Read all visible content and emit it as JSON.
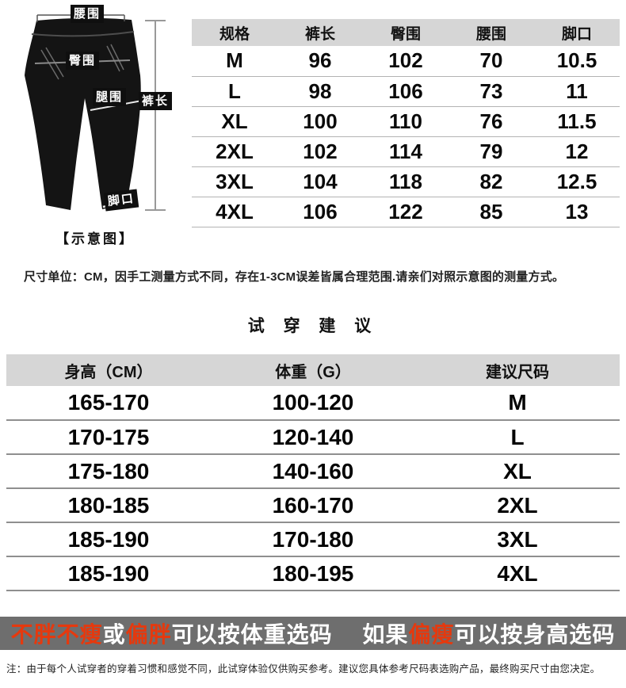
{
  "diagram": {
    "labels": {
      "waist": "腰围",
      "hip": "臀围",
      "thigh": "腿围",
      "length": "裤长",
      "cuff": "脚口"
    },
    "caption": "【示意图】"
  },
  "size_table": {
    "headers": [
      "规格",
      "裤长",
      "臀围",
      "腰围",
      "脚口"
    ],
    "rows": [
      [
        "M",
        "96",
        "102",
        "70",
        "10.5"
      ],
      [
        "L",
        "98",
        "106",
        "73",
        "11"
      ],
      [
        "XL",
        "100",
        "110",
        "76",
        "11.5"
      ],
      [
        "2XL",
        "102",
        "114",
        "79",
        "12"
      ],
      [
        "3XL",
        "104",
        "118",
        "82",
        "12.5"
      ],
      [
        "4XL",
        "106",
        "122",
        "85",
        "13"
      ]
    ]
  },
  "measure_note": "尺寸单位：CM，因手工测量方式不同，存在1-3CM误差皆属合理范围.请亲们对照示意图的测量方式。",
  "tryon": {
    "title": "试 穿 建 议",
    "headers": [
      "身高（CM）",
      "体重（G）",
      "建议尺码"
    ],
    "rows": [
      [
        "165-170",
        "100-120",
        "M"
      ],
      [
        "170-175",
        "120-140",
        "L"
      ],
      [
        "175-180",
        "140-160",
        "XL"
      ],
      [
        "180-185",
        "160-170",
        "2XL"
      ],
      [
        "185-190",
        "170-180",
        "3XL"
      ],
      [
        "185-190",
        "180-195",
        "4XL"
      ]
    ]
  },
  "highlight_bar": {
    "segments": [
      {
        "text": "不胖不瘦",
        "color": "red"
      },
      {
        "text": "或",
        "color": "white"
      },
      {
        "text": "偏胖",
        "color": "red"
      },
      {
        "text": "可以按体重选码　 如果",
        "color": "white"
      },
      {
        "text": "偏瘦",
        "color": "red"
      },
      {
        "text": "可以按身高选码",
        "color": "white"
      }
    ],
    "colors": {
      "red": "#e5390e",
      "white": "#ffffff",
      "background": "#6e6e6e"
    }
  },
  "footnote": "注：由于每个人试穿者的穿着习惯和感觉不同，此试穿体验仅供购买参考。建议您具体参考尺码表选购产品，最终购买尺寸由您决定。"
}
